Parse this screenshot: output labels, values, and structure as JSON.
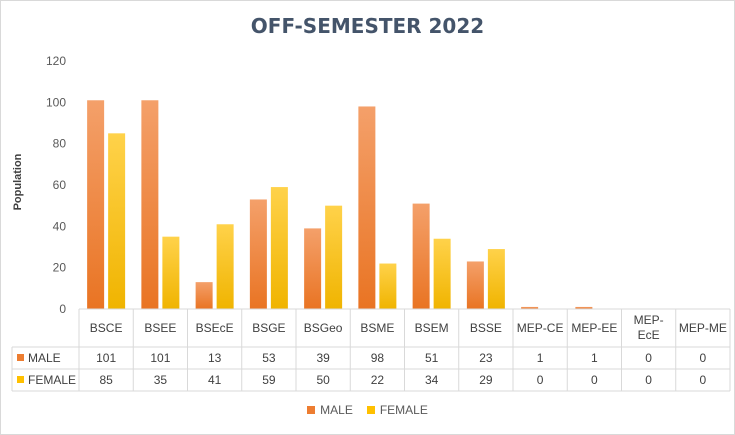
{
  "chart_data": {
    "type": "bar",
    "title": "OFF-SEMESTER 2022",
    "ylabel": "Population",
    "ylim": [
      0,
      120
    ],
    "yticks": [
      0,
      20,
      40,
      60,
      80,
      100,
      120
    ],
    "categories": [
      "BSCE",
      "BSEE",
      "BSEcE",
      "BSGE",
      "BSGeo",
      "BSME",
      "BSEM",
      "BSSE",
      "MEP-CE",
      "MEP-EE",
      "MEP-EcE",
      "MEP-ME"
    ],
    "series": [
      {
        "name": "MALE",
        "color": "#ed7d31",
        "values": [
          101,
          101,
          13,
          53,
          39,
          98,
          51,
          23,
          1,
          1,
          0,
          0
        ]
      },
      {
        "name": "FEMALE",
        "color": "#ffc000",
        "values": [
          85,
          35,
          41,
          59,
          50,
          22,
          34,
          29,
          0,
          0,
          0,
          0
        ]
      }
    ],
    "legend": "bottom",
    "grid": false,
    "data_table": true
  }
}
